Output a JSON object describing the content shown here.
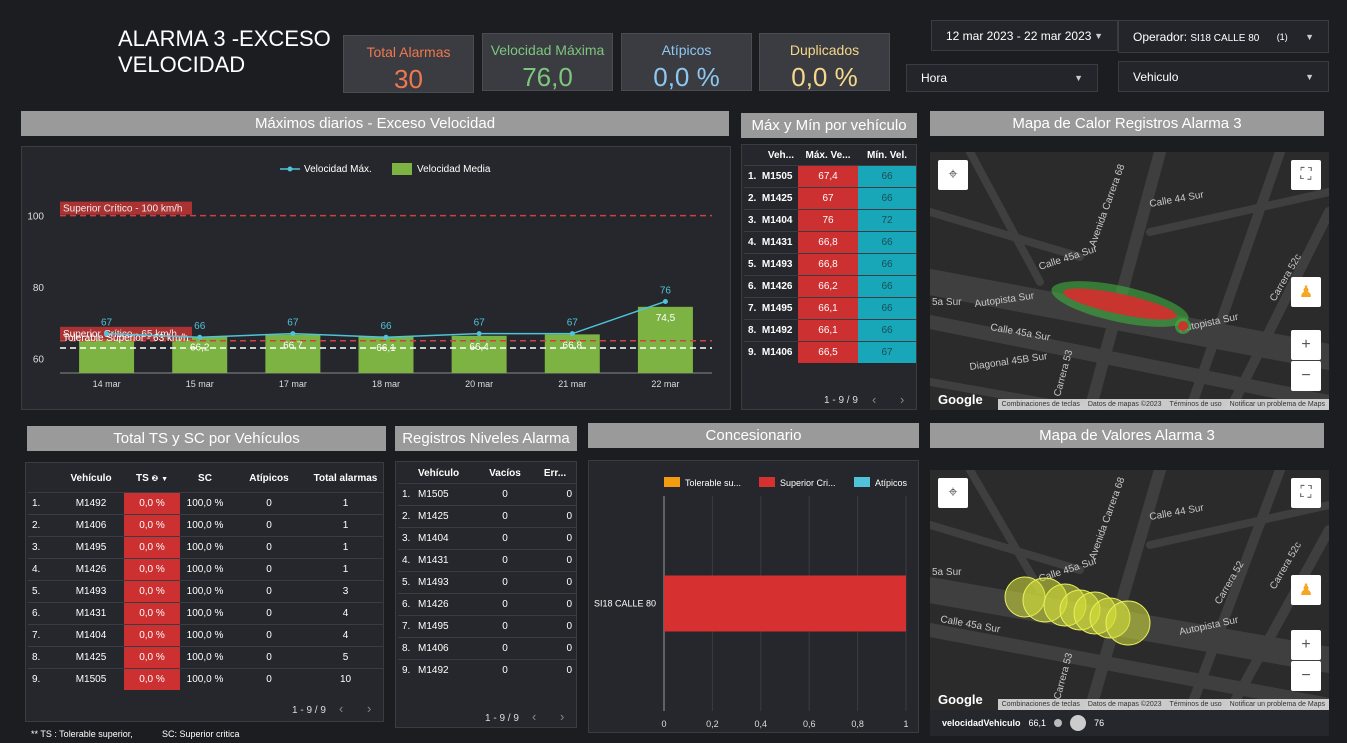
{
  "header": {
    "title": "ALARMA 3 -EXCESO VELOCIDAD",
    "kpis": [
      {
        "label": "Total Alarmas",
        "value": "30",
        "color": "#f07850"
      },
      {
        "label": "Velocidad Máxima",
        "value": "76,0",
        "color": "#7dc67d"
      },
      {
        "label": "Atípicos",
        "value": "0,0 %",
        "color": "#8ec8f0"
      },
      {
        "label": "Duplicados",
        "value": "0,0 %",
        "color": "#f5d88a"
      }
    ]
  },
  "filters": {
    "date_range": "12 mar 2023 - 22 mar 2023",
    "operator_label": "Operador",
    "operator_value": "SI18 CALLE 80",
    "operator_count": "(1)",
    "hour": "Hora",
    "vehicle": "Vehiculo"
  },
  "sections": {
    "daily": "Máximos diarios - Exceso Velocidad",
    "maxmin": "Máx y Mín por vehículo",
    "heatmap": "Mapa de Calor Registros Alarma 3",
    "ts_sc": "Total TS y SC por Vehículos",
    "levels": "Registros Niveles Alarma",
    "concesionario": "Concesionario",
    "values_map": "Mapa de Valores Alarma 3"
  },
  "chart_data": [
    {
      "type": "bar",
      "title": "",
      "categories": [
        "14 mar",
        "15 mar",
        "17 mar",
        "18 mar",
        "20 mar",
        "21 mar",
        "22 mar"
      ],
      "series": [
        {
          "name": "Velocidad Máx.",
          "kind": "line",
          "color": "#4fc3d9",
          "values": [
            67,
            66,
            67,
            66,
            67,
            67,
            76
          ]
        },
        {
          "name": "Velocidad Media",
          "kind": "bar",
          "color": "#7cb342",
          "values": [
            65.6,
            66.2,
            66.7,
            66.1,
            66.4,
            66.8,
            74.5
          ]
        }
      ],
      "bar_labels": [
        "",
        "66,2",
        "66,7",
        "66,1",
        "66,4",
        "66,8",
        "74,5"
      ],
      "reference_lines": [
        {
          "label": "Superior Crítico - 100 km/h",
          "value": 100,
          "color": "#d04040"
        },
        {
          "label": "Superior Crítico - 65 km/h",
          "value": 65,
          "color": "#d04040"
        },
        {
          "label": "Tolerable Superior - 63 km/h",
          "value": 63,
          "color": "#ffffff"
        }
      ],
      "yticks": [
        60,
        80,
        100
      ],
      "ylim": [
        56,
        108
      ],
      "legend": "top"
    },
    {
      "type": "bar",
      "orientation": "horizontal",
      "title": "",
      "categories": [
        "SI18 CALLE 80"
      ],
      "series": [
        {
          "name": "Tolerable su...",
          "color": "#f39c12",
          "values": [
            0
          ]
        },
        {
          "name": "Superior Cri...",
          "color": "#d63030",
          "values": [
            1
          ]
        },
        {
          "name": "Atípicos",
          "color": "#4fc3d9",
          "values": [
            0
          ]
        }
      ],
      "xticks": [
        "0",
        "0,2",
        "0,4",
        "0,6",
        "0,8",
        "1"
      ],
      "xlim": [
        0,
        1
      ],
      "legend": "top"
    }
  ],
  "maxmin_table": {
    "headers": [
      "Veh...",
      "Máx. Ve...",
      "Mín. Vel."
    ],
    "rows": [
      {
        "n": "1.",
        "veh": "M1505",
        "max": "67,4",
        "min": "66"
      },
      {
        "n": "2.",
        "veh": "M1425",
        "max": "67",
        "min": "66"
      },
      {
        "n": "3.",
        "veh": "M1404",
        "max": "76",
        "min": "72"
      },
      {
        "n": "4.",
        "veh": "M1431",
        "max": "66,8",
        "min": "66"
      },
      {
        "n": "5.",
        "veh": "M1493",
        "max": "66,8",
        "min": "66"
      },
      {
        "n": "6.",
        "veh": "M1426",
        "max": "66,2",
        "min": "66"
      },
      {
        "n": "7.",
        "veh": "M1495",
        "max": "66,1",
        "min": "66"
      },
      {
        "n": "8.",
        "veh": "M1492",
        "max": "66,1",
        "min": "66"
      },
      {
        "n": "9.",
        "veh": "M1406",
        "max": "66,5",
        "min": "67"
      }
    ],
    "pager": "1 - 9 / 9"
  },
  "ts_table": {
    "headers": [
      "Vehículo",
      "TS",
      "SC",
      "Atípicos",
      "Total alarmas"
    ],
    "rows": [
      {
        "n": "1.",
        "veh": "M1492",
        "ts": "0,0 %",
        "sc": "100,0 %",
        "at": "0",
        "tot": "1"
      },
      {
        "n": "2.",
        "veh": "M1406",
        "ts": "0,0 %",
        "sc": "100,0 %",
        "at": "0",
        "tot": "1"
      },
      {
        "n": "3.",
        "veh": "M1495",
        "ts": "0,0 %",
        "sc": "100,0 %",
        "at": "0",
        "tot": "1"
      },
      {
        "n": "4.",
        "veh": "M1426",
        "ts": "0,0 %",
        "sc": "100,0 %",
        "at": "0",
        "tot": "1"
      },
      {
        "n": "5.",
        "veh": "M1493",
        "ts": "0,0 %",
        "sc": "100,0 %",
        "at": "0",
        "tot": "3"
      },
      {
        "n": "6.",
        "veh": "M1431",
        "ts": "0,0 %",
        "sc": "100,0 %",
        "at": "0",
        "tot": "4"
      },
      {
        "n": "7.",
        "veh": "M1404",
        "ts": "0,0 %",
        "sc": "100,0 %",
        "at": "0",
        "tot": "4"
      },
      {
        "n": "8.",
        "veh": "M1425",
        "ts": "0,0 %",
        "sc": "100,0 %",
        "at": "0",
        "tot": "5"
      },
      {
        "n": "9.",
        "veh": "M1505",
        "ts": "0,0 %",
        "sc": "100,0 %",
        "at": "0",
        "tot": "10"
      }
    ],
    "pager": "1 - 9 / 9",
    "footnote_ts": "** TS : Tolerable superior,",
    "footnote_sc": "SC:  Superior critica"
  },
  "levels_table": {
    "headers": [
      "Vehículo",
      "Vacíos",
      "Err..."
    ],
    "rows": [
      {
        "n": "1.",
        "veh": "M1505",
        "vac": "0",
        "err": "0"
      },
      {
        "n": "2.",
        "veh": "M1425",
        "vac": "0",
        "err": "0"
      },
      {
        "n": "3.",
        "veh": "M1404",
        "vac": "0",
        "err": "0"
      },
      {
        "n": "4.",
        "veh": "M1431",
        "vac": "0",
        "err": "0"
      },
      {
        "n": "5.",
        "veh": "M1493",
        "vac": "0",
        "err": "0"
      },
      {
        "n": "6.",
        "veh": "M1426",
        "vac": "0",
        "err": "0"
      },
      {
        "n": "7.",
        "veh": "M1495",
        "vac": "0",
        "err": "0"
      },
      {
        "n": "8.",
        "veh": "M1406",
        "vac": "0",
        "err": "0"
      },
      {
        "n": "9.",
        "veh": "M1492",
        "vac": "0",
        "err": "0"
      }
    ],
    "pager": "1 - 9 / 9"
  },
  "map": {
    "streets": [
      "Avenida Carrera 68",
      "Calle 44 Sur",
      "Calle 45a Sur",
      "Autopista Sur",
      "Carrera 52c",
      "Carrera 53",
      "Diagonal 45B Sur",
      "5a Sur",
      "Carrera 52",
      "Carrera 5",
      "2c"
    ],
    "footer": [
      "Combinaciones de teclas",
      "Datos de mapas ©2023",
      "Términos de uso",
      "Notificar un problema de Maps"
    ],
    "google": "Google",
    "legend_label": "velocidadVehiculo",
    "legend_min": "66,1",
    "legend_max": "76"
  }
}
